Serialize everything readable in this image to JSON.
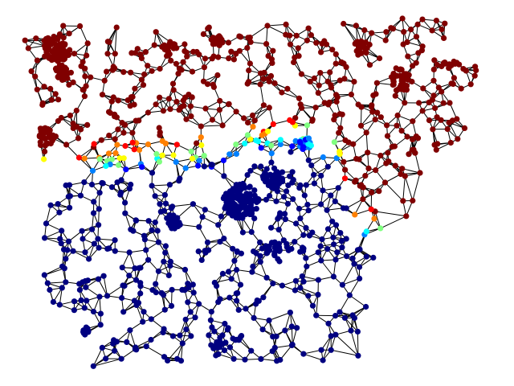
{
  "figure": {
    "kind": "graph-partition-visualization",
    "background": "#ffffff",
    "edge_color": "#000000",
    "colormap": "jet",
    "colormap_stops": [
      "#000080",
      "#0000ff",
      "#0080ff",
      "#00ffff",
      "#80ff80",
      "#ffff00",
      "#ff8000",
      "#ff0000",
      "#800000"
    ],
    "regions": [
      {
        "name": "north-region",
        "color": "#800000"
      },
      {
        "name": "south-region",
        "color": "#000080"
      },
      {
        "name": "boundary-band",
        "color": "mixed"
      }
    ]
  }
}
